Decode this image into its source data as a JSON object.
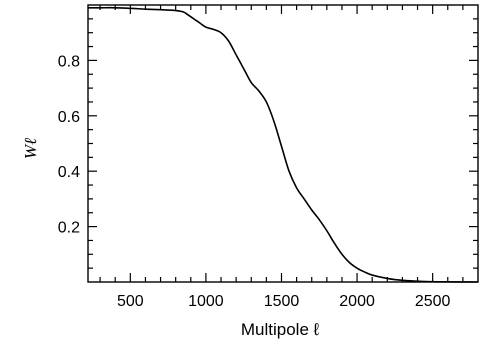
{
  "chart_data": {
    "type": "line",
    "title": "",
    "xlabel": "Multipole ℓ",
    "ylabel": "Wℓ",
    "xlim": [
      220,
      2800
    ],
    "ylim": [
      0,
      1.0
    ],
    "grid": false,
    "legend": "none",
    "x_ticks": [
      500,
      1000,
      1500,
      2000,
      2500
    ],
    "x_tick_labels": [
      "500",
      "1000",
      "1500",
      "2000",
      "2500"
    ],
    "y_ticks": [
      0.2,
      0.4,
      0.6,
      0.8
    ],
    "y_tick_labels": [
      "0.2",
      "0.4",
      "0.6",
      "0.8"
    ],
    "series": [
      {
        "color": "#000000",
        "x": [
          220,
          300,
          400,
          500,
          600,
          700,
          800,
          850,
          880,
          920,
          960,
          1000,
          1050,
          1100,
          1150,
          1200,
          1250,
          1300,
          1350,
          1400,
          1450,
          1500,
          1550,
          1600,
          1650,
          1700,
          1750,
          1800,
          1850,
          1900,
          1950,
          2000,
          2050,
          2100,
          2200,
          2300,
          2400,
          2500,
          2600,
          2700,
          2800
        ],
        "y": [
          0.99,
          0.99,
          0.99,
          0.988,
          0.985,
          0.983,
          0.98,
          0.975,
          0.965,
          0.95,
          0.935,
          0.92,
          0.912,
          0.9,
          0.87,
          0.82,
          0.77,
          0.72,
          0.69,
          0.65,
          0.58,
          0.49,
          0.4,
          0.34,
          0.3,
          0.26,
          0.225,
          0.185,
          0.14,
          0.1,
          0.07,
          0.05,
          0.036,
          0.025,
          0.013,
          0.006,
          0.003,
          0.001,
          0.0005,
          0.0002,
          0.0
        ]
      }
    ]
  }
}
